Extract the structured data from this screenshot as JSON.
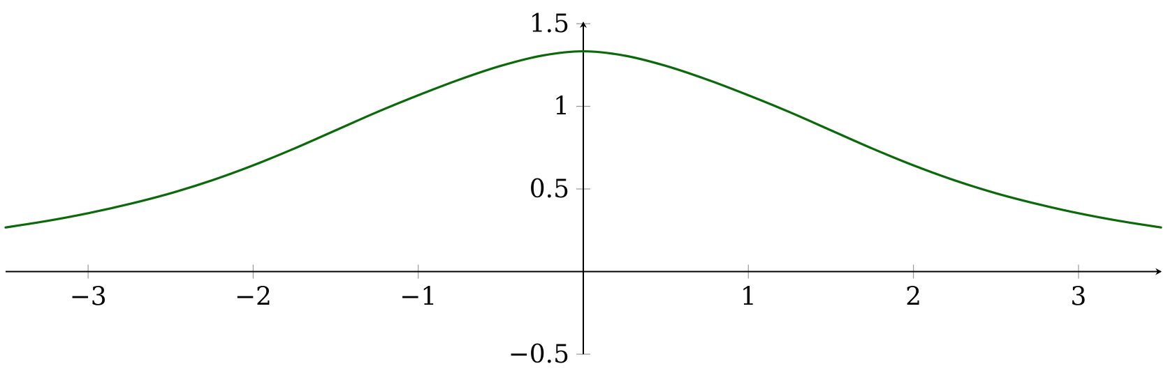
{
  "chart_data": {
    "type": "line",
    "title": "",
    "xlabel": "",
    "ylabel": "",
    "xlim": [
      -3.5,
      3.5
    ],
    "ylim": [
      -0.5,
      1.5
    ],
    "x_ticks": [
      -3,
      -2,
      -1,
      1,
      2,
      3
    ],
    "x_tick_labels": [
      "−3",
      "−2",
      "−1",
      "1",
      "2",
      "3"
    ],
    "y_ticks": [
      1.5,
      1,
      0.5,
      -0.5
    ],
    "y_tick_labels": [
      "1.5",
      "1",
      "0.5",
      "−0.5"
    ],
    "grid": false,
    "series": [
      {
        "color": "#0a6a0a",
        "x": [
          -3.5,
          -3.25,
          -3,
          -2.75,
          -2.5,
          -2.25,
          -2,
          -1.75,
          -1.5,
          -1.25,
          -1,
          -0.75,
          -0.5,
          -0.25,
          0,
          0.25,
          0.5,
          0.75,
          1,
          1.25,
          1.5,
          1.75,
          2,
          2.25,
          2.5,
          2.75,
          3,
          3.25,
          3.5
        ],
        "y": [
          0.267,
          0.306,
          0.353,
          0.409,
          0.474,
          0.552,
          0.643,
          0.745,
          0.855,
          0.965,
          1.067,
          1.162,
          1.245,
          1.307,
          1.333,
          1.307,
          1.245,
          1.162,
          1.067,
          0.965,
          0.855,
          0.745,
          0.643,
          0.552,
          0.474,
          0.409,
          0.353,
          0.306,
          0.267
        ]
      }
    ]
  }
}
